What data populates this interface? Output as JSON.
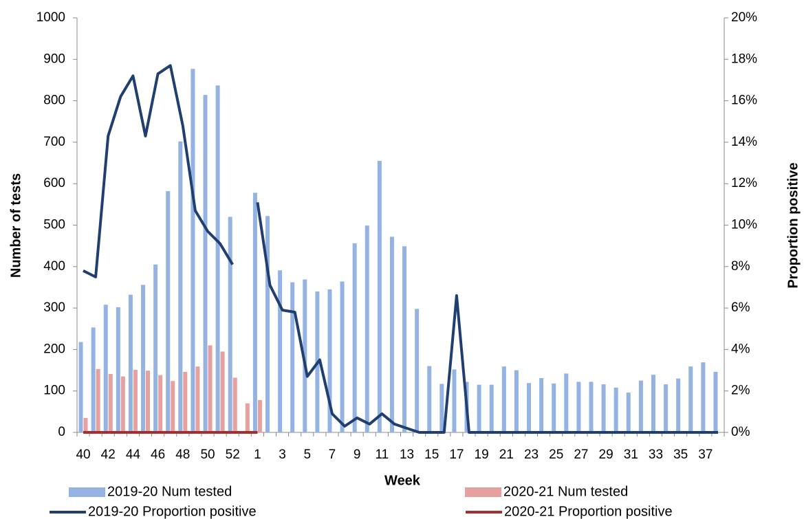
{
  "chart_data": {
    "type": "bar",
    "x_label": "Week",
    "y_label": "Number of tests",
    "y2_label": "Proportion positive",
    "categories": [
      "40",
      null,
      "42",
      null,
      "44",
      null,
      "46",
      null,
      "48",
      null,
      "50",
      null,
      "52",
      null,
      "1",
      null,
      "3",
      null,
      "5",
      null,
      "7",
      null,
      "9",
      null,
      "11",
      null,
      "13",
      null,
      "15",
      null,
      "17",
      null,
      "19",
      null,
      "21",
      null,
      "23",
      null,
      "25",
      null,
      "27",
      null,
      "29",
      null,
      "31",
      null,
      "33",
      null,
      "35",
      null,
      "37",
      null
    ],
    "ylim": [
      0,
      1000
    ],
    "yticks": [
      0,
      100,
      200,
      300,
      400,
      500,
      600,
      700,
      800,
      900,
      1000
    ],
    "y2lim": [
      0,
      20
    ],
    "y2ticks": [
      {
        "value": 0,
        "label": "0%"
      },
      {
        "value": 2,
        "label": "2%"
      },
      {
        "value": 4,
        "label": "4%"
      },
      {
        "value": 6,
        "label": "6%"
      },
      {
        "value": 8,
        "label": "8%"
      },
      {
        "value": 10,
        "label": "10%"
      },
      {
        "value": 12,
        "label": "12%"
      },
      {
        "value": 14,
        "label": "14%"
      },
      {
        "value": 16,
        "label": "16%"
      },
      {
        "value": 18,
        "label": "18%"
      },
      {
        "value": 20,
        "label": "20%"
      }
    ],
    "grid": false,
    "series": [
      {
        "name": "2019-20 Num tested",
        "type": "bar",
        "color": "#95b3e2",
        "values": [
          218,
          253,
          308,
          302,
          332,
          356,
          405,
          582,
          702,
          877,
          814,
          837,
          520,
          null,
          578,
          522,
          391,
          362,
          369,
          340,
          345,
          364,
          456,
          499,
          655,
          472,
          449,
          298,
          160,
          117,
          152,
          122,
          115,
          115,
          159,
          150,
          119,
          131,
          118,
          142,
          122,
          122,
          116,
          108,
          96,
          125,
          139,
          116,
          130,
          159,
          169,
          146
        ]
      },
      {
        "name": "2020-21 Num tested",
        "type": "bar",
        "color": "#e6a0a0",
        "values": [
          35,
          153,
          141,
          135,
          151,
          149,
          138,
          124,
          146,
          159,
          210,
          195,
          132,
          70,
          78,
          null,
          null,
          null,
          null,
          null,
          null,
          null,
          null,
          null,
          null,
          null,
          null,
          null,
          null,
          null,
          null,
          null,
          null,
          null,
          null,
          null,
          null,
          null,
          null,
          null,
          null,
          null,
          null,
          null,
          null,
          null,
          null,
          null,
          null,
          null,
          null,
          null
        ]
      },
      {
        "name": "2019-20 Proportion positive",
        "type": "line",
        "axis": "y2",
        "color": "#203f6f",
        "values": [
          7.8,
          7.5,
          14.3,
          16.2,
          17.2,
          14.3,
          17.3,
          17.7,
          14.8,
          10.7,
          9.7,
          9.1,
          8.1,
          null,
          11.1,
          7.1,
          5.9,
          5.8,
          2.7,
          3.5,
          0.9,
          0.3,
          0.7,
          0.4,
          0.9,
          0.4,
          0.2,
          0,
          0,
          0,
          6.6,
          0,
          0,
          0,
          0,
          0,
          0,
          0,
          0,
          0,
          0,
          0,
          0,
          0,
          0,
          0,
          0,
          0,
          0,
          0,
          0,
          0
        ]
      },
      {
        "name": "2020-21 Proportion positive",
        "type": "line",
        "axis": "y2",
        "color": "#a3302e",
        "values": [
          0,
          0,
          0,
          0,
          0,
          0,
          0,
          0,
          0,
          0,
          0,
          0,
          0,
          0,
          0,
          null,
          null,
          null,
          null,
          null,
          null,
          null,
          null,
          null,
          null,
          null,
          null,
          null,
          null,
          null,
          null,
          null,
          null,
          null,
          null,
          null,
          null,
          null,
          null,
          null,
          null,
          null,
          null,
          null,
          null,
          null,
          null,
          null,
          null,
          null,
          null,
          null
        ]
      }
    ]
  }
}
